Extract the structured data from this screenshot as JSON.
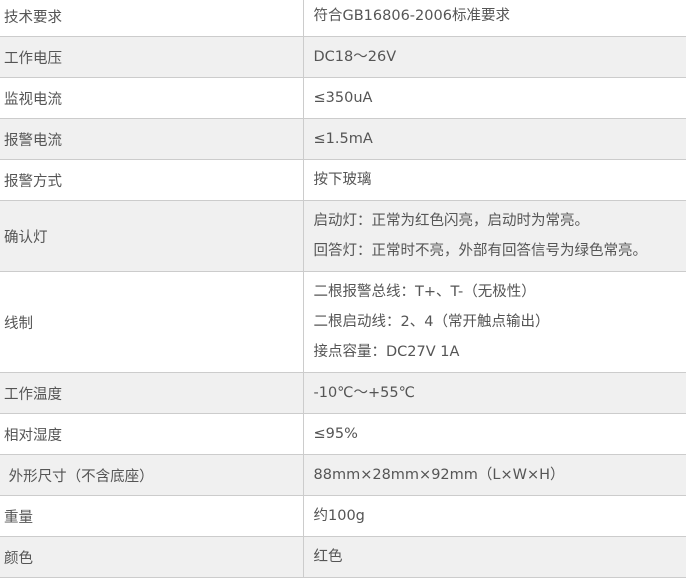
{
  "rows": [
    {
      "label": "技术要求",
      "values": [
        "符合GB16806-2006标准要求"
      ]
    },
    {
      "label": "工作电压",
      "values": [
        "DC18～26V"
      ]
    },
    {
      "label": "监视电流",
      "values": [
        "≤350uA"
      ]
    },
    {
      "label": "报警电流",
      "values": [
        "≤1.5mA"
      ]
    },
    {
      "label": "报警方式",
      "values": [
        "按下玻璃"
      ]
    },
    {
      "label": "确认灯",
      "values": [
        "启动灯：正常为红色闪亮，启动时为常亮。",
        "回答灯：正常时不亮，外部有回答信号为绿色常亮。"
      ]
    },
    {
      "label": "线制",
      "values": [
        "二根报警总线：T+、T-（无极性）",
        "二根启动线：2、4（常开触点输出）",
        "接点容量：DC27V  1A"
      ]
    },
    {
      "label": "工作温度",
      "values": [
        "-10℃～+55℃"
      ]
    },
    {
      "label": "相对湿度",
      "values": [
        "≤95%"
      ]
    },
    {
      "label": " 外形尺寸（不含底座）",
      "values": [
        "88mm×28mm×92mm（L×W×H）"
      ]
    },
    {
      "label": "重量",
      "values": [
        "约100g"
      ]
    },
    {
      "label": "颜色",
      "values": [
        "红色"
      ]
    }
  ]
}
